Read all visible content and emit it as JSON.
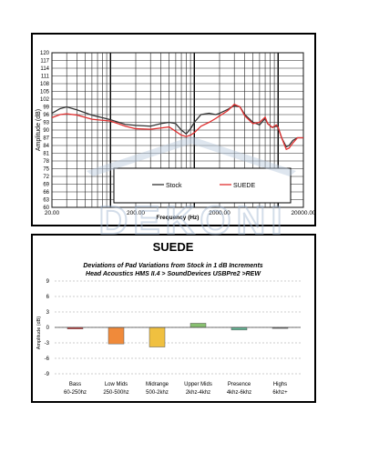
{
  "watermark": {
    "text": "DEKONI",
    "color": "#b8c8dc"
  },
  "chart_data": [
    {
      "type": "line",
      "title": "",
      "xlabel": "Frequency (Hz)",
      "ylabel": "Amplitude (dB)",
      "xscale": "log",
      "xlim": [
        20,
        20000
      ],
      "ylim": [
        60,
        120
      ],
      "x_ticks": [
        "20.00",
        "200.00",
        "2000.00",
        "20000.00"
      ],
      "y_ticks": [
        60,
        63,
        66,
        69,
        72,
        75,
        78,
        81,
        84,
        87,
        90,
        93,
        96,
        99,
        102,
        105,
        108,
        111,
        114,
        117,
        120
      ],
      "grid": true,
      "legend_position": "bottom-right",
      "series": [
        {
          "name": "Stock",
          "color": "#333333",
          "points": [
            [
              20,
              96.5
            ],
            [
              25,
              98.3
            ],
            [
              30,
              99
            ],
            [
              40,
              97.8
            ],
            [
              60,
              95.8
            ],
            [
              100,
              94
            ],
            [
              150,
              92.2
            ],
            [
              200,
              91.8
            ],
            [
              300,
              91.5
            ],
            [
              400,
              92.5
            ],
            [
              500,
              93
            ],
            [
              600,
              92.5
            ],
            [
              700,
              90
            ],
            [
              800,
              88.5
            ],
            [
              900,
              90.5
            ],
            [
              1000,
              93
            ],
            [
              1200,
              96
            ],
            [
              1500,
              96.5
            ],
            [
              1800,
              96
            ],
            [
              2000,
              96.5
            ],
            [
              2500,
              98
            ],
            [
              3000,
              99.5
            ],
            [
              3500,
              99
            ],
            [
              4000,
              96
            ],
            [
              5000,
              93
            ],
            [
              6000,
              92
            ],
            [
              7000,
              94.5
            ],
            [
              7500,
              92.5
            ],
            [
              8500,
              91
            ],
            [
              9500,
              91.5
            ],
            [
              10000,
              91
            ],
            [
              11000,
              87
            ],
            [
              12500,
              83.5
            ],
            [
              13500,
              84
            ],
            [
              15000,
              86
            ],
            [
              17000,
              87
            ],
            [
              20000,
              87
            ]
          ]
        },
        {
          "name": "SUEDE",
          "color": "#e03030",
          "points": [
            [
              20,
              94.8
            ],
            [
              25,
              96
            ],
            [
              30,
              96.3
            ],
            [
              40,
              95.8
            ],
            [
              60,
              94.2
            ],
            [
              100,
              93.5
            ],
            [
              150,
              91.5
            ],
            [
              200,
              90.5
            ],
            [
              300,
              90.3
            ],
            [
              400,
              90.8
            ],
            [
              500,
              91.2
            ],
            [
              600,
              89.5
            ],
            [
              700,
              88
            ],
            [
              800,
              87.5
            ],
            [
              900,
              88
            ],
            [
              1000,
              89
            ],
            [
              1200,
              91.5
            ],
            [
              1500,
              93
            ],
            [
              1800,
              94.5
            ],
            [
              2000,
              95.5
            ],
            [
              2500,
              97.5
            ],
            [
              3000,
              100
            ],
            [
              3500,
              99
            ],
            [
              4000,
              95.5
            ],
            [
              5000,
              92.5
            ],
            [
              6000,
              93
            ],
            [
              7000,
              95
            ],
            [
              7500,
              92.5
            ],
            [
              8500,
              91
            ],
            [
              9500,
              92
            ],
            [
              10000,
              91
            ],
            [
              11000,
              87
            ],
            [
              12500,
              82.5
            ],
            [
              13500,
              83
            ],
            [
              15000,
              85
            ],
            [
              17000,
              87
            ],
            [
              20000,
              87
            ]
          ]
        }
      ]
    },
    {
      "type": "bar",
      "title": "SUEDE",
      "subtitle_lines": [
        "Deviations of Pad Variations from Stock in 1 dB Increments",
        "Head Acoustics HMS II.4 > SoundDevices USBPre2 >REW"
      ],
      "ylabel": "Amplitude (dB)",
      "ylim": [
        -9,
        9
      ],
      "y_ticks": [
        9,
        6,
        3,
        0,
        -3,
        -6,
        -9
      ],
      "categories": [
        [
          "Bass",
          "60-250hz"
        ],
        [
          "Low Mids",
          "250-500hz"
        ],
        [
          "Midrange",
          "500-2khz"
        ],
        [
          "Upper Mids",
          "2khz-4khz"
        ],
        [
          "Presence",
          "4khz-6khz"
        ],
        [
          "Highs",
          "6khz+"
        ]
      ],
      "values": [
        -0.3,
        -3.2,
        -3.8,
        0.8,
        -0.5,
        -0.2
      ],
      "colors": [
        "#e04848",
        "#f08a3a",
        "#f0c040",
        "#88c070",
        "#68b898",
        "#7a7a7a"
      ],
      "grid": true
    }
  ]
}
